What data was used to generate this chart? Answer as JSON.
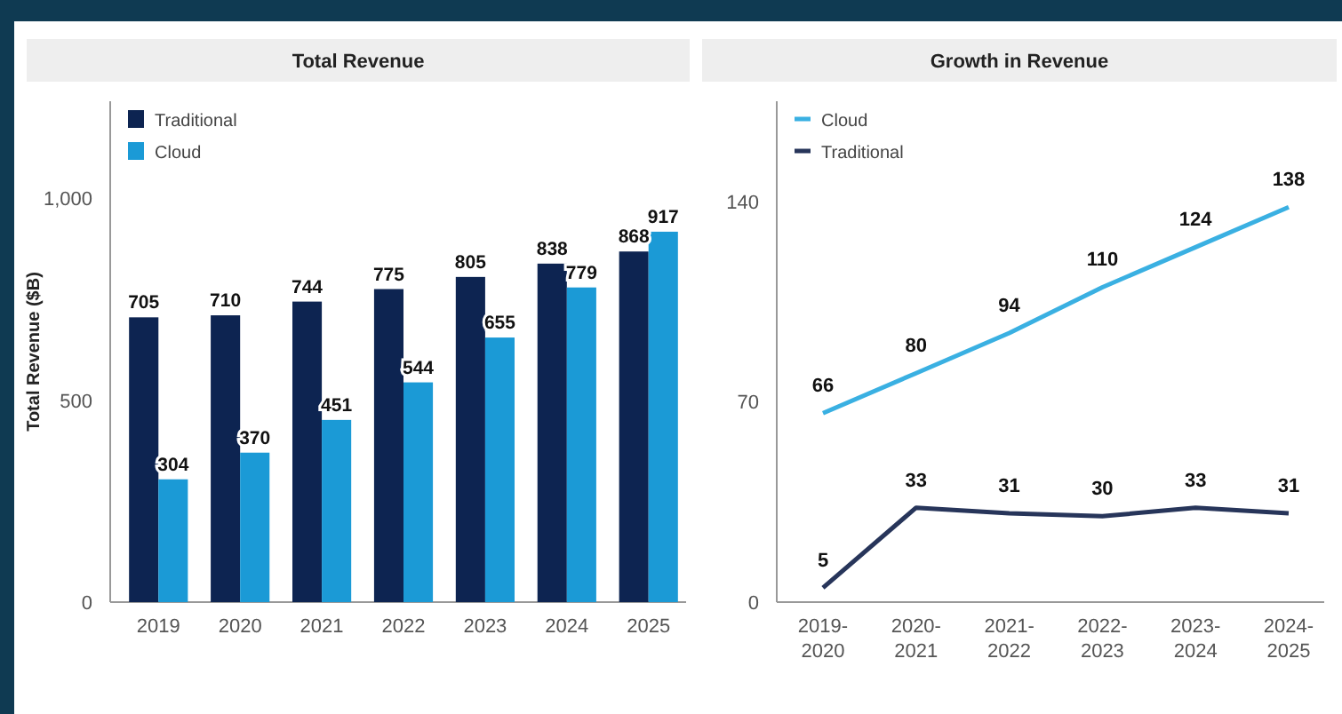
{
  "chart_data": [
    {
      "type": "bar",
      "title": "Total Revenue",
      "ylabel": "Total Revenue ($B)",
      "categories": [
        "2019",
        "2020",
        "2021",
        "2022",
        "2023",
        "2024",
        "2025"
      ],
      "series": [
        {
          "name": "Traditional",
          "color": "#0d2451",
          "values": [
            705,
            710,
            744,
            775,
            805,
            838,
            868
          ]
        },
        {
          "name": "Cloud",
          "color": "#1b9ad6",
          "values": [
            304,
            370,
            451,
            544,
            655,
            779,
            917
          ]
        }
      ],
      "ylim": [
        0,
        1240
      ],
      "yticks": [
        0,
        {
          "value": 500,
          "label": "500"
        },
        {
          "value": 1000,
          "label": "1,000"
        }
      ],
      "grid": false,
      "legend": "top left",
      "data_labels": true
    },
    {
      "type": "line",
      "title": "Growth in Revenue",
      "categories": [
        "2019-2020",
        "2020-2021",
        "2021-2022",
        "2022-2023",
        "2023-2024",
        "2024-2025"
      ],
      "series": [
        {
          "name": "Cloud",
          "color": "#3ab0e2",
          "values": [
            66,
            80,
            94,
            110,
            124,
            138
          ]
        },
        {
          "name": "Traditional",
          "color": "#27355a",
          "values": [
            5,
            33,
            31,
            30,
            33,
            31
          ]
        }
      ],
      "ylim": [
        0,
        175
      ],
      "yticks": [
        0,
        70,
        140
      ],
      "grid": false,
      "legend": "top left",
      "data_labels": true
    }
  ]
}
